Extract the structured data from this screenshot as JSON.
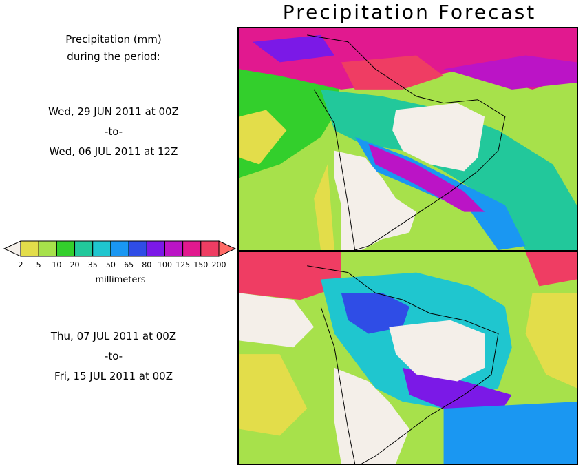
{
  "title": "Precipitation Forecast",
  "header": {
    "line1": "Precipitation (mm)",
    "line2": "during the period:"
  },
  "period1": {
    "start": "Wed, 29 JUN 2011 at 00Z",
    "separator": "-to-",
    "end": "Wed, 06 JUL 2011 at 12Z"
  },
  "period2": {
    "start": "Thu, 07 JUL 2011 at 00Z",
    "separator": "-to-",
    "end": "Fri, 15 JUL 2011 at 00Z"
  },
  "colorbar": {
    "unit_label": "millimeters",
    "ticks": [
      "2",
      "5",
      "10",
      "20",
      "35",
      "50",
      "65",
      "80",
      "100",
      "125",
      "150",
      "200"
    ],
    "colors": [
      "#f4efe9",
      "#e3dd4a",
      "#a7e14b",
      "#33cf2c",
      "#22c89b",
      "#1fc6cf",
      "#1a97f2",
      "#2f4de6",
      "#7b19e7",
      "#bb14c6",
      "#e1198f",
      "#ef3d63",
      "#ff6a66"
    ]
  }
}
